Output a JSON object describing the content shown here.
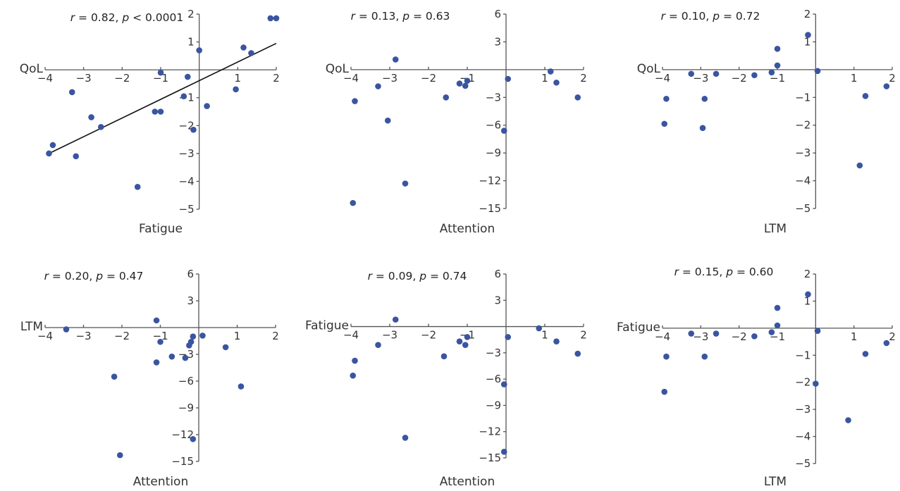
{
  "chart_data": [
    {
      "type": "scatter",
      "xlabel": "Fatigue",
      "ylabel": "QoL",
      "stat": {
        "r": "0.82",
        "p": "p < 0.0001"
      },
      "xlim": [
        -4,
        2
      ],
      "ylim": [
        -5,
        2
      ],
      "xticks": [
        -4,
        -3,
        -2,
        -1,
        1,
        2
      ],
      "yticks": [
        -5,
        -4,
        -3,
        -2,
        -1,
        1,
        2
      ],
      "points": [
        [
          -3.9,
          -3.0
        ],
        [
          -3.8,
          -2.7
        ],
        [
          -3.3,
          -0.8
        ],
        [
          -3.2,
          -3.1
        ],
        [
          -2.8,
          -1.7
        ],
        [
          -2.55,
          -2.05
        ],
        [
          -1.6,
          -4.2
        ],
        [
          -1.15,
          -1.5
        ],
        [
          -1.0,
          -1.5
        ],
        [
          -1.0,
          -0.1
        ],
        [
          -0.4,
          -0.95
        ],
        [
          -0.3,
          -0.25
        ],
        [
          -0.15,
          -2.15
        ],
        [
          0.0,
          0.7
        ],
        [
          0.2,
          -1.3
        ],
        [
          0.95,
          -0.7
        ],
        [
          1.15,
          0.8
        ],
        [
          1.35,
          0.6
        ],
        [
          1.85,
          1.85
        ],
        [
          2.0,
          1.85
        ]
      ],
      "fit_line": [
        [
          -3.9,
          -3.0
        ],
        [
          2.0,
          0.95
        ]
      ]
    },
    {
      "type": "scatter",
      "xlabel": "Attention",
      "ylabel": "QoL",
      "stat": {
        "r": "0.13",
        "p": "p = 0.63"
      },
      "xlim": [
        -4,
        2
      ],
      "ylim": [
        -15,
        6
      ],
      "xticks": [
        -4,
        -3,
        -2,
        -1,
        1,
        2
      ],
      "yticks": [
        -15,
        -12,
        -9,
        -6,
        -3,
        3,
        6
      ],
      "points": [
        [
          -3.9,
          -3.4
        ],
        [
          -3.95,
          -14.4
        ],
        [
          -3.3,
          -1.8
        ],
        [
          -3.05,
          -5.5
        ],
        [
          -2.85,
          1.1
        ],
        [
          -2.6,
          -12.3
        ],
        [
          -1.55,
          -3.0
        ],
        [
          -1.2,
          -1.5
        ],
        [
          -1.05,
          -1.75
        ],
        [
          -1.0,
          -1.2
        ],
        [
          -0.05,
          -6.6
        ],
        [
          0.05,
          -1.0
        ],
        [
          1.15,
          -0.2
        ],
        [
          1.3,
          -1.4
        ],
        [
          1.85,
          -3.0
        ]
      ]
    },
    {
      "type": "scatter",
      "xlabel": "LTM",
      "ylabel": "QoL",
      "stat": {
        "r": "0.10",
        "p": "p = 0.72"
      },
      "xlim": [
        -4,
        2
      ],
      "ylim": [
        -5,
        2
      ],
      "xticks": [
        -4,
        -3,
        -2,
        -1,
        1,
        2
      ],
      "yticks": [
        -5,
        -4,
        -3,
        -2,
        -1,
        1,
        2
      ],
      "points": [
        [
          -3.9,
          -1.05
        ],
        [
          -3.95,
          -1.95
        ],
        [
          -3.25,
          -0.15
        ],
        [
          -2.9,
          -1.05
        ],
        [
          -2.95,
          -2.1
        ],
        [
          -2.6,
          -0.15
        ],
        [
          -1.6,
          -0.2
        ],
        [
          -1.15,
          -0.1
        ],
        [
          -1.0,
          0.15
        ],
        [
          -1.0,
          0.75
        ],
        [
          -0.2,
          1.25
        ],
        [
          0.05,
          -0.05
        ],
        [
          1.15,
          -3.45
        ],
        [
          1.3,
          -0.95
        ],
        [
          1.85,
          -0.6
        ]
      ]
    },
    {
      "type": "scatter",
      "xlabel": "Attention",
      "ylabel": "LTM",
      "stat": {
        "r": "0.20",
        "p": "p = 0.47"
      },
      "xlim": [
        -4,
        2
      ],
      "ylim": [
        -15,
        6
      ],
      "xticks": [
        -4,
        -3,
        -2,
        -1,
        1,
        2
      ],
      "yticks": [
        -15,
        -12,
        -9,
        -6,
        -3,
        3,
        6
      ],
      "points": [
        [
          -3.45,
          -0.2
        ],
        [
          -2.2,
          -5.5
        ],
        [
          -2.05,
          -14.3
        ],
        [
          -1.1,
          0.8
        ],
        [
          -1.1,
          -3.9
        ],
        [
          -1.0,
          -1.6
        ],
        [
          -0.7,
          -3.25
        ],
        [
          -0.35,
          -3.4
        ],
        [
          -0.25,
          -2.0
        ],
        [
          -0.2,
          -1.6
        ],
        [
          -0.15,
          -1.0
        ],
        [
          -0.15,
          -12.5
        ],
        [
          0.1,
          -0.9
        ],
        [
          0.7,
          -2.2
        ],
        [
          1.1,
          -6.6
        ]
      ]
    },
    {
      "type": "scatter",
      "xlabel": "Attention",
      "ylabel": "Fatigue",
      "stat": {
        "r": "0.09",
        "p": "p = 0.74"
      },
      "xlim": [
        -4,
        2
      ],
      "ylim": [
        -15,
        6
      ],
      "xticks": [
        -4,
        -3,
        -2,
        -1,
        1,
        2
      ],
      "yticks": [
        -15,
        -12,
        -9,
        -6,
        -3,
        3,
        6
      ],
      "points": [
        [
          -3.9,
          -3.9
        ],
        [
          -3.95,
          -5.6
        ],
        [
          -3.3,
          -2.1
        ],
        [
          -2.85,
          0.8
        ],
        [
          -2.6,
          -12.7
        ],
        [
          -1.6,
          -3.4
        ],
        [
          -1.2,
          -1.7
        ],
        [
          -1.05,
          -2.1
        ],
        [
          -1.0,
          -1.2
        ],
        [
          -0.05,
          -6.6
        ],
        [
          -0.05,
          -14.3
        ],
        [
          0.05,
          -1.2
        ],
        [
          0.85,
          -0.2
        ],
        [
          1.3,
          -1.7
        ],
        [
          1.85,
          -3.1
        ]
      ]
    },
    {
      "type": "scatter",
      "xlabel": "LTM",
      "ylabel": "Fatigue",
      "stat": {
        "r": "0.15",
        "p": "p = 0.60"
      },
      "xlim": [
        -4,
        2
      ],
      "ylim": [
        -5,
        2
      ],
      "xticks": [
        -4,
        -3,
        -2,
        -1,
        1,
        2
      ],
      "yticks": [
        -5,
        -4,
        -3,
        -2,
        -1,
        1,
        2
      ],
      "points": [
        [
          -3.9,
          -1.05
        ],
        [
          -3.95,
          -2.35
        ],
        [
          -3.25,
          -0.2
        ],
        [
          -2.9,
          -1.05
        ],
        [
          -2.6,
          -0.2
        ],
        [
          -1.6,
          -0.3
        ],
        [
          -1.15,
          -0.15
        ],
        [
          -1.0,
          0.1
        ],
        [
          -1.0,
          0.75
        ],
        [
          -0.2,
          1.25
        ],
        [
          0.0,
          -2.05
        ],
        [
          0.05,
          -0.1
        ],
        [
          0.85,
          -3.4
        ],
        [
          1.3,
          -0.95
        ],
        [
          1.85,
          -0.55
        ]
      ]
    }
  ],
  "colors": {
    "points": "#3a55a0",
    "axes": "#555555",
    "fit_line": "#111111"
  }
}
